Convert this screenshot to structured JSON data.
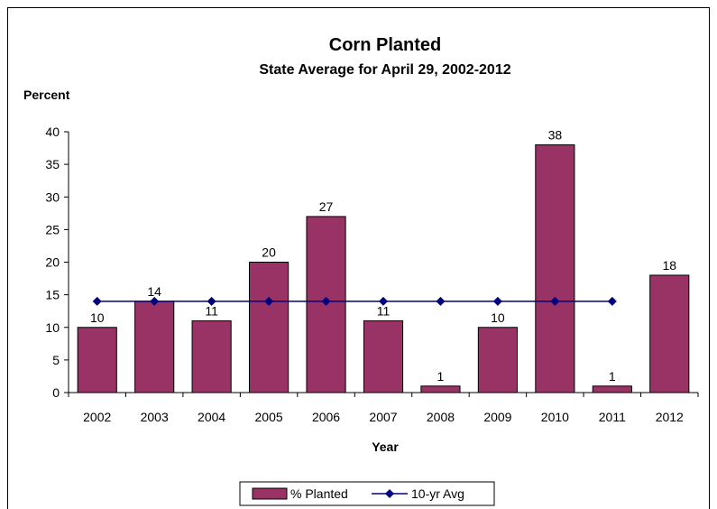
{
  "chart_data": {
    "type": "bar",
    "title": "Corn Planted",
    "subtitle": "State Average for April 29, 2002-2012",
    "xlabel": "Year",
    "ylabel": "Percent",
    "ylim": [
      0,
      40
    ],
    "yticks": [
      0,
      5,
      10,
      15,
      20,
      25,
      30,
      35,
      40
    ],
    "categories": [
      "2002",
      "2003",
      "2004",
      "2005",
      "2006",
      "2007",
      "2008",
      "2009",
      "2010",
      "2011",
      "2012"
    ],
    "series": [
      {
        "name": "% Planted",
        "type": "bar",
        "color": "#993366",
        "values": [
          10,
          14,
          11,
          20,
          27,
          11,
          1,
          10,
          38,
          1,
          18
        ],
        "data_labels": [
          "10",
          "14",
          "11",
          "20",
          "27",
          "11",
          "1",
          "10",
          "38",
          "1",
          "18"
        ]
      },
      {
        "name": "10-yr Avg",
        "type": "line",
        "marker": "diamond",
        "color": "#000080",
        "values": [
          14,
          14,
          14,
          14,
          14,
          14,
          14,
          14,
          14,
          14,
          null
        ]
      }
    ],
    "grid": false,
    "legend_position": "bottom"
  }
}
